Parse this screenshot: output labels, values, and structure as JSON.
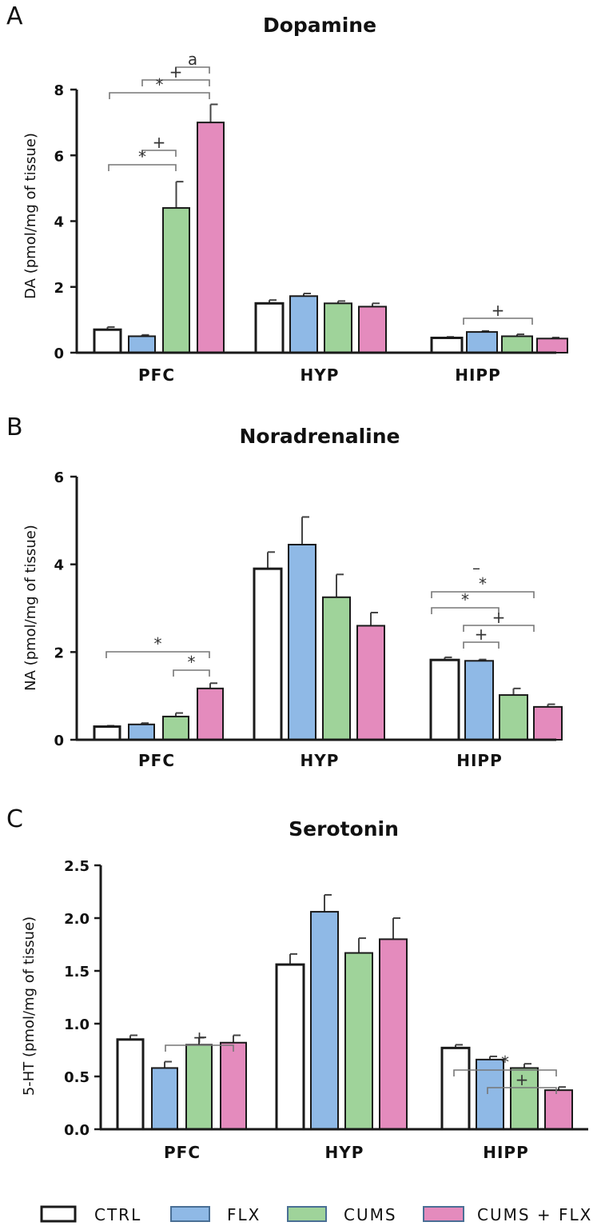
{
  "figure_panels": [
    "A",
    "B",
    "C"
  ],
  "legend": [
    {
      "name": "CTRL",
      "color": "#ffffff"
    },
    {
      "name": "FLX",
      "color": "#8fb9e6"
    },
    {
      "name": "CUMS",
      "color": "#9fd39a"
    },
    {
      "name": "CUMS + FLX",
      "color": "#e48bbd"
    }
  ],
  "colors": {
    "axis": "#1a1a1a",
    "bar_edge": "#1a1a1a",
    "bracket": "#777777"
  },
  "chart_data": [
    {
      "panel": "A",
      "type": "bar",
      "title": "Dopamine",
      "ylabel": "DA (pmol/mg of tissue)",
      "xlabel": "",
      "ylim": [
        0,
        8
      ],
      "yticks": [
        0,
        2,
        4,
        6,
        8
      ],
      "ytick_labels": [
        "0",
        "2",
        "4",
        "6",
        "8"
      ],
      "categories": [
        "PFC",
        "HYP",
        "HIPP"
      ],
      "series": [
        {
          "name": "CTRL",
          "values": [
            0.7,
            1.5,
            0.45
          ],
          "errors": [
            0.08,
            0.1,
            0.03
          ]
        },
        {
          "name": "FLX",
          "values": [
            0.5,
            1.72,
            0.63
          ],
          "errors": [
            0.04,
            0.08,
            0.03
          ]
        },
        {
          "name": "CUMS",
          "values": [
            4.4,
            1.5,
            0.5
          ],
          "errors": [
            0.8,
            0.07,
            0.06
          ]
        },
        {
          "name": "CUMS + FLX",
          "values": [
            7.0,
            1.4,
            0.43
          ],
          "errors": [
            0.55,
            0.1,
            0.03
          ]
        }
      ],
      "significance": [
        {
          "category": 0,
          "from": 2,
          "to": 3,
          "label": "a"
        },
        {
          "category": 0,
          "from": 1,
          "to": 3,
          "label": "+"
        },
        {
          "category": 0,
          "from": 0,
          "to": 3,
          "label": "*"
        },
        {
          "category": 0,
          "from": 1,
          "to": 2,
          "label": "+"
        },
        {
          "category": 0,
          "from": 0,
          "to": 2,
          "label": "*"
        },
        {
          "category": 2,
          "from": 1,
          "to": 3,
          "label": "+"
        }
      ]
    },
    {
      "panel": "B",
      "type": "bar",
      "title": "Noradrenaline",
      "ylabel": "NA (pmol/mg of tissue)",
      "xlabel": "",
      "ylim": [
        0,
        6
      ],
      "yticks": [
        0,
        2,
        4,
        6
      ],
      "ytick_labels": [
        "0",
        "2",
        "4",
        "6"
      ],
      "categories": [
        "PFC",
        "HYP",
        "HIPP"
      ],
      "series": [
        {
          "name": "CTRL",
          "values": [
            0.3,
            3.9,
            1.82
          ],
          "errors": [
            0.02,
            0.38,
            0.06
          ]
        },
        {
          "name": "FLX",
          "values": [
            0.35,
            4.45,
            1.8
          ],
          "errors": [
            0.03,
            0.63,
            0.03
          ]
        },
        {
          "name": "CUMS",
          "values": [
            0.53,
            3.25,
            1.02
          ],
          "errors": [
            0.08,
            0.52,
            0.15
          ]
        },
        {
          "name": "CUMS + FLX",
          "values": [
            1.17,
            2.6,
            0.75
          ],
          "errors": [
            0.12,
            0.3,
            0.06
          ]
        }
      ],
      "significance": [
        {
          "category": 0,
          "from": 0,
          "to": 3,
          "label": "*"
        },
        {
          "category": 0,
          "from": 2,
          "to": 3,
          "label": "*"
        },
        {
          "category": 2,
          "from": 0,
          "to": 3,
          "label": "*"
        },
        {
          "category": 2,
          "from": 0,
          "to": 2,
          "label": "*"
        },
        {
          "category": 2,
          "from": 1,
          "to": 3,
          "label": "+"
        },
        {
          "category": 2,
          "from": 1,
          "to": 2,
          "label": "+"
        }
      ],
      "annotations": [
        "–"
      ]
    },
    {
      "panel": "C",
      "type": "bar",
      "title": "Serotonin",
      "ylabel": "5-HT (pmol/mg of tissue)",
      "xlabel": "",
      "ylim": [
        0,
        2.5
      ],
      "yticks": [
        0,
        0.5,
        1.0,
        1.5,
        2.0,
        2.5
      ],
      "ytick_labels": [
        "0.0",
        "0.5",
        "1.0",
        "1.5",
        "2.0",
        "2.5"
      ],
      "categories": [
        "PFC",
        "HYP",
        "HIPP"
      ],
      "series": [
        {
          "name": "CTRL",
          "values": [
            0.85,
            1.56,
            0.77
          ],
          "errors": [
            0.04,
            0.1,
            0.03
          ]
        },
        {
          "name": "FLX",
          "values": [
            0.58,
            2.06,
            0.66
          ],
          "errors": [
            0.06,
            0.16,
            0.03
          ]
        },
        {
          "name": "CUMS",
          "values": [
            0.8,
            1.67,
            0.58
          ],
          "errors": [
            0.07,
            0.14,
            0.04
          ]
        },
        {
          "name": "CUMS + FLX",
          "values": [
            0.82,
            1.8,
            0.37
          ],
          "errors": [
            0.07,
            0.2,
            0.03
          ]
        }
      ],
      "significance": [
        {
          "category": 0,
          "from": 1,
          "to": 3,
          "label": "+"
        },
        {
          "category": 2,
          "from": 0,
          "to": 3,
          "label": "*"
        },
        {
          "category": 2,
          "from": 1,
          "to": 3,
          "label": "+"
        }
      ]
    }
  ]
}
